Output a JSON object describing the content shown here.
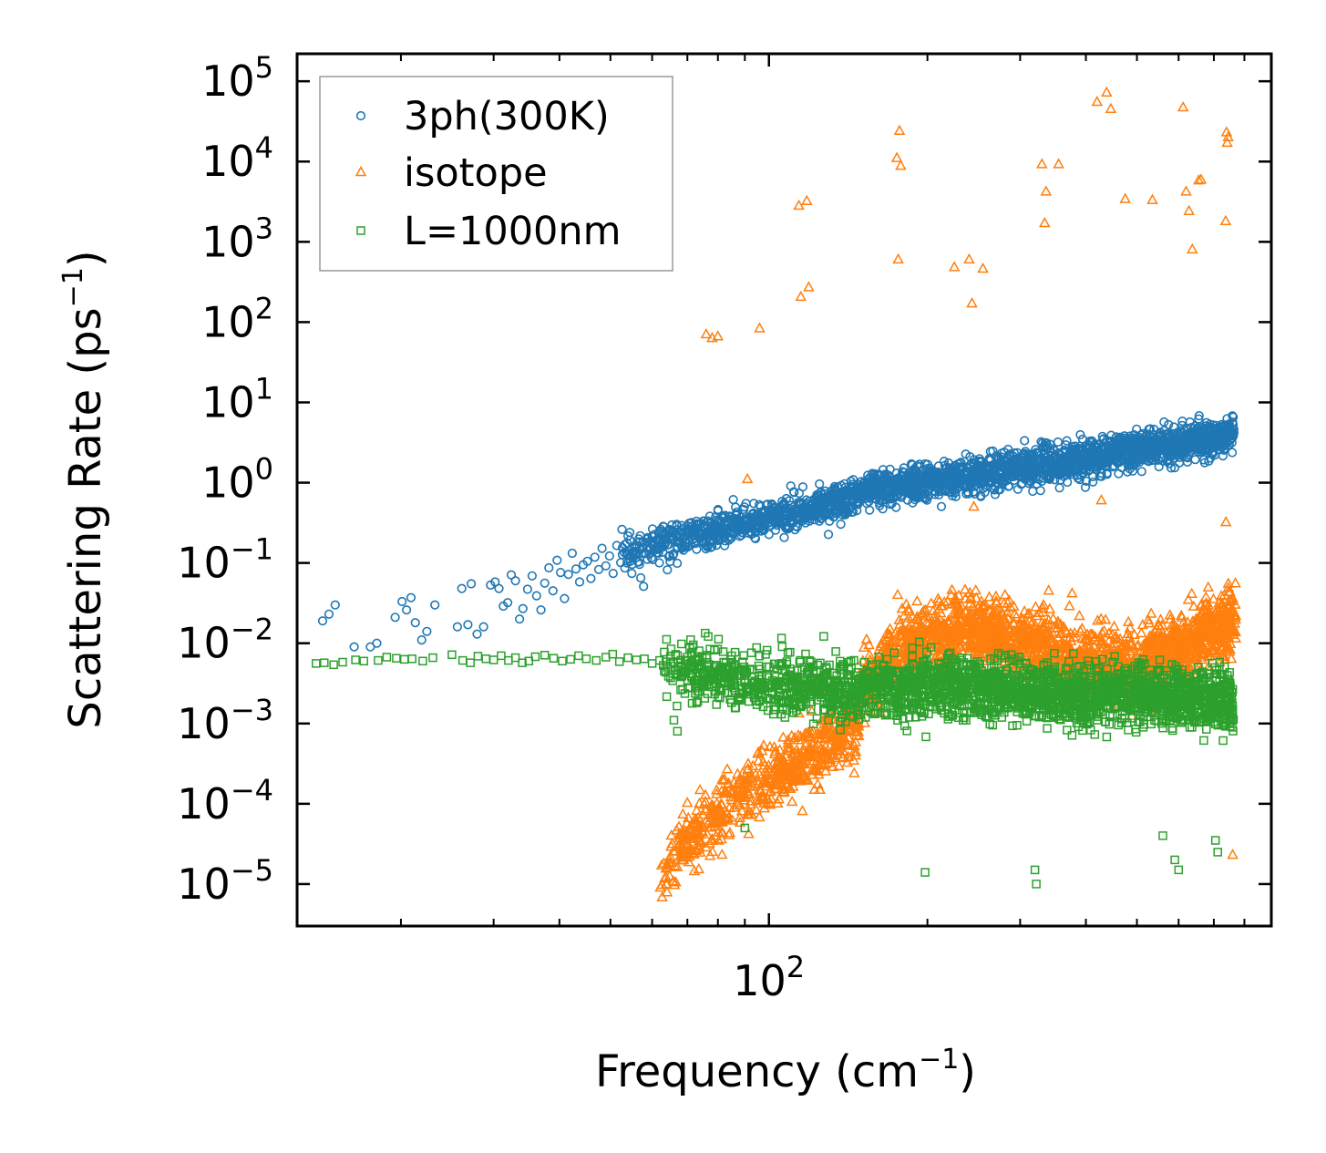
{
  "chart_data": {
    "type": "scatter",
    "x_scale": "log",
    "y_scale": "log",
    "xlabel": "Frequency (cm",
    "xlabel_sup": "−1",
    "xlabel_end": ")",
    "ylabel": "Scattering Rate (ps",
    "ylabel_sup": "−1",
    "ylabel_end": ")",
    "xlim": [
      12.7,
      900
    ],
    "ylim": [
      3e-06,
      220000.0
    ],
    "x_ticks": [
      {
        "value": 100,
        "base": "10",
        "exp": "2"
      }
    ],
    "y_ticks": [
      {
        "value": 1e-05,
        "base": "10",
        "exp": "−5"
      },
      {
        "value": 0.0001,
        "base": "10",
        "exp": "−4"
      },
      {
        "value": 0.001,
        "base": "10",
        "exp": "−3"
      },
      {
        "value": 0.01,
        "base": "10",
        "exp": "−2"
      },
      {
        "value": 0.1,
        "base": "10",
        "exp": "−1"
      },
      {
        "value": 1,
        "base": "10",
        "exp": "0"
      },
      {
        "value": 10,
        "base": "10",
        "exp": "1"
      },
      {
        "value": 100,
        "base": "10",
        "exp": "2"
      },
      {
        "value": 1000,
        "base": "10",
        "exp": "3"
      },
      {
        "value": 10000,
        "base": "10",
        "exp": "4"
      },
      {
        "value": 100000,
        "base": "10",
        "exp": "5"
      }
    ],
    "legend_position": "top-left",
    "series": [
      {
        "name": "3ph(300K)",
        "marker": "circle",
        "color": "#1f77b4",
        "points": [
          [
            14.2,
            0.019
          ],
          [
            14.6,
            0.023
          ],
          [
            15.0,
            0.03
          ],
          [
            16.3,
            0.009
          ],
          [
            17.5,
            0.009
          ],
          [
            18.0,
            0.01
          ],
          [
            19.5,
            0.021
          ],
          [
            20.1,
            0.033
          ],
          [
            20.5,
            0.026
          ],
          [
            20.9,
            0.037
          ],
          [
            21.3,
            0.018
          ],
          [
            21.9,
            0.011
          ],
          [
            22.4,
            0.014
          ],
          [
            23.2,
            0.03
          ],
          [
            25.6,
            0.016
          ],
          [
            26.1,
            0.048
          ],
          [
            26.8,
            0.017
          ],
          [
            27.2,
            0.055
          ],
          [
            27.9,
            0.013
          ],
          [
            28.7,
            0.016
          ],
          [
            29.6,
            0.053
          ],
          [
            30.2,
            0.058
          ],
          [
            30.7,
            0.048
          ],
          [
            31.3,
            0.029
          ],
          [
            31.9,
            0.032
          ],
          [
            32.4,
            0.071
          ],
          [
            33.0,
            0.06
          ],
          [
            33.6,
            0.02
          ],
          [
            34.1,
            0.027
          ],
          [
            34.8,
            0.047
          ],
          [
            35.5,
            0.069
          ],
          [
            36.2,
            0.039
          ],
          [
            36.9,
            0.026
          ],
          [
            37.5,
            0.056
          ],
          [
            38.2,
            0.087
          ],
          [
            38.9,
            0.045
          ],
          [
            39.6,
            0.108
          ],
          [
            40.2,
            0.076
          ],
          [
            40.9,
            0.036
          ],
          [
            41.6,
            0.072
          ],
          [
            42.3,
            0.132
          ],
          [
            43.0,
            0.084
          ],
          [
            43.7,
            0.058
          ],
          [
            44.4,
            0.095
          ],
          [
            45.2,
            0.105
          ],
          [
            45.9,
            0.064
          ],
          [
            46.7,
            0.118
          ],
          [
            47.5,
            0.083
          ],
          [
            48.2,
            0.152
          ],
          [
            49.0,
            0.092
          ],
          [
            49.8,
            0.122
          ],
          [
            50.6,
            0.074
          ],
          [
            51.4,
            0.165
          ],
          [
            52.3,
            0.101
          ],
          [
            53.1,
            0.135
          ],
          [
            54.0,
            0.217
          ],
          [
            54.9,
            0.074
          ],
          [
            55.8,
            0.125
          ],
          [
            56.8,
            0.183
          ],
          [
            57.8,
            0.051
          ],
          [
            58.9,
            0.16
          ]
        ],
        "trend": [
          [
            52,
            0.13
          ],
          [
            60,
            0.17
          ],
          [
            80,
            0.26
          ],
          [
            100,
            0.36
          ],
          [
            125,
            0.5
          ],
          [
            148,
            0.62
          ],
          [
            150,
            0.8
          ],
          [
            200,
            1.0
          ],
          [
            300,
            1.5
          ],
          [
            400,
            2.0
          ],
          [
            500,
            2.6
          ],
          [
            600,
            3.0
          ],
          [
            700,
            3.6
          ],
          [
            760,
            4.0
          ]
        ],
        "trend_spread_dex": 0.18,
        "trend_x_range": [
          52,
          765
        ],
        "notes": "dense band of several thousand points"
      },
      {
        "name": "isotope",
        "marker": "triangle",
        "color": "#ff7f0e",
        "points": [
          [
            76,
            70
          ],
          [
            78,
            63
          ],
          [
            80,
            66
          ],
          [
            96,
            83
          ],
          [
            91,
            1.1
          ],
          [
            114,
            2800
          ],
          [
            118,
            3200
          ],
          [
            115,
            205
          ],
          [
            119,
            270
          ],
          [
            175,
            11000
          ],
          [
            177,
            24000
          ],
          [
            178,
            8800
          ],
          [
            176,
            600
          ],
          [
            225,
            480
          ],
          [
            240,
            600
          ],
          [
            243,
            170
          ],
          [
            255,
            460
          ],
          [
            245,
            0.5
          ],
          [
            330,
            9200
          ],
          [
            355,
            9200
          ],
          [
            336,
            4200
          ],
          [
            334,
            1700
          ],
          [
            420,
            55000
          ],
          [
            438,
            72000
          ],
          [
            446,
            45000
          ],
          [
            475,
            3400
          ],
          [
            535,
            3300
          ],
          [
            620,
            4200
          ],
          [
            628,
            2400
          ],
          [
            655,
            5800
          ],
          [
            662,
            5900
          ],
          [
            637,
            800
          ],
          [
            612,
            47000
          ],
          [
            740,
            23000
          ],
          [
            742,
            17000
          ],
          [
            745,
            20000
          ],
          [
            737,
            1800
          ],
          [
            428,
            0.6
          ],
          [
            738,
            0.32
          ],
          [
            760,
            2.3e-05
          ]
        ],
        "trend": [
          [
            62,
            1.1e-05
          ],
          [
            70,
            3.5e-05
          ],
          [
            85,
            0.0001
          ],
          [
            100,
            0.0002
          ],
          [
            125,
            0.0005
          ],
          [
            148,
            0.001
          ],
          [
            150,
            0.003
          ],
          [
            175,
            0.008
          ],
          [
            210,
            0.012
          ],
          [
            250,
            0.015
          ],
          [
            300,
            0.01
          ],
          [
            400,
            0.006
          ],
          [
            500,
            0.005
          ],
          [
            600,
            0.009
          ],
          [
            700,
            0.015
          ],
          [
            765,
            0.02
          ]
        ],
        "trend_spread_dex": 0.35,
        "trend_x_range": [
          62,
          770
        ],
        "notes": "dense band; low-frequency branch below 150 cm-1 rises from 1e-5"
      },
      {
        "name": "L=1000nm",
        "marker": "square",
        "color": "#2ca02c",
        "points": [
          [
            13.8,
            0.0056
          ],
          [
            14.3,
            0.0057
          ],
          [
            14.9,
            0.0054
          ],
          [
            15.5,
            0.0058
          ],
          [
            16.4,
            0.0062
          ],
          [
            17.0,
            0.006
          ],
          [
            18.1,
            0.0061
          ],
          [
            18.8,
            0.0067
          ],
          [
            19.6,
            0.0065
          ],
          [
            20.3,
            0.0063
          ],
          [
            21.0,
            0.0064
          ],
          [
            22.0,
            0.006
          ],
          [
            23.0,
            0.0066
          ],
          [
            25.0,
            0.0072
          ],
          [
            26.2,
            0.0061
          ],
          [
            27.1,
            0.0057
          ],
          [
            28.0,
            0.0069
          ],
          [
            29.0,
            0.0064
          ],
          [
            30.0,
            0.0062
          ],
          [
            31.0,
            0.007
          ],
          [
            32.0,
            0.0061
          ],
          [
            33.0,
            0.0066
          ],
          [
            34.0,
            0.0057
          ],
          [
            35.0,
            0.006
          ],
          [
            36.0,
            0.0068
          ],
          [
            37.5,
            0.0071
          ],
          [
            39.0,
            0.0065
          ],
          [
            40.5,
            0.006
          ],
          [
            42.0,
            0.0063
          ],
          [
            43.5,
            0.007
          ],
          [
            45.0,
            0.0064
          ],
          [
            47.0,
            0.0061
          ],
          [
            49.0,
            0.0067
          ],
          [
            50.5,
            0.0073
          ],
          [
            52.0,
            0.0059
          ],
          [
            54.0,
            0.0066
          ],
          [
            56.0,
            0.0062
          ],
          [
            58.0,
            0.0064
          ],
          [
            60.0,
            0.0056
          ],
          [
            62.0,
            0.0061
          ],
          [
            63.0,
            0.0053
          ],
          [
            66.0,
            0.0011
          ],
          [
            67.0,
            0.0008
          ],
          [
            90,
            5e-05
          ],
          [
            198,
            1.4e-05
          ],
          [
            320,
            1.5e-05
          ],
          [
            322,
            1e-05
          ],
          [
            560,
            4e-05
          ],
          [
            590,
            2e-05
          ],
          [
            600,
            1.5e-05
          ],
          [
            705,
            3.5e-05
          ],
          [
            712,
            2.5e-05
          ]
        ],
        "trend": [
          [
            63,
            0.0058
          ],
          [
            70,
            0.0042
          ],
          [
            100,
            0.003
          ],
          [
            150,
            0.0026
          ],
          [
            200,
            0.0028
          ],
          [
            300,
            0.0025
          ],
          [
            400,
            0.0022
          ],
          [
            500,
            0.0024
          ],
          [
            600,
            0.0022
          ],
          [
            700,
            0.002
          ],
          [
            765,
            0.0019
          ]
        ],
        "trend_spread_dex": 0.3,
        "trend_x_range": [
          63,
          765
        ],
        "notes": "dense band with scattered outliers down to 1e-5"
      }
    ]
  }
}
